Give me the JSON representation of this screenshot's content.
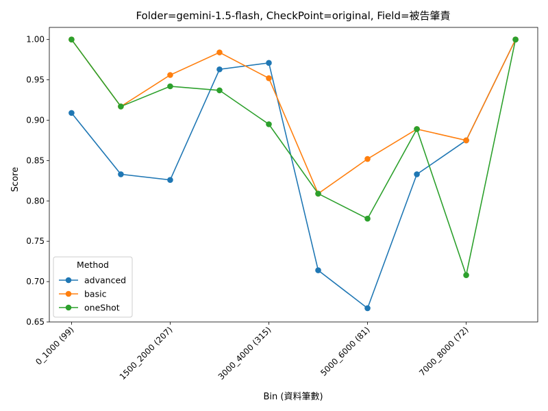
{
  "chart_data": {
    "type": "line",
    "title": "Folder=gemini-1.5-flash, CheckPoint=original, Field=被告肇責",
    "xlabel": "Bin (資料筆數)",
    "ylabel": "Score",
    "ylim": [
      0.65,
      1.015
    ],
    "yticks": [
      "0.65",
      "0.70",
      "0.75",
      "0.80",
      "0.85",
      "0.90",
      "0.95",
      "1.00"
    ],
    "x_positions": [
      0,
      1,
      2,
      3,
      4,
      5,
      6,
      7,
      8,
      9
    ],
    "x_tick_labels": [
      {
        "pos": 0,
        "label": "0_1000 (99)"
      },
      {
        "pos": 2,
        "label": "1500_2000 (207)"
      },
      {
        "pos": 4,
        "label": "3000_4000 (315)"
      },
      {
        "pos": 6,
        "label": "5000_6000 (81)"
      },
      {
        "pos": 8,
        "label": "7000_8000 (72)"
      }
    ],
    "legend": {
      "title": "Method",
      "placement": "lower-left"
    },
    "grid": false,
    "series": [
      {
        "name": "advanced",
        "color": "#1f77b4",
        "values": [
          0.909,
          0.833,
          0.826,
          0.963,
          0.971,
          0.714,
          0.667,
          0.833,
          0.875,
          1.0
        ]
      },
      {
        "name": "basic",
        "color": "#ff7f0e",
        "values": [
          1.0,
          0.917,
          0.956,
          0.984,
          0.952,
          0.809,
          0.852,
          0.889,
          0.875,
          1.0
        ]
      },
      {
        "name": "oneShot",
        "color": "#2ca02c",
        "values": [
          1.0,
          0.917,
          0.942,
          0.937,
          0.895,
          0.809,
          0.778,
          0.889,
          0.708,
          1.0
        ]
      }
    ]
  }
}
